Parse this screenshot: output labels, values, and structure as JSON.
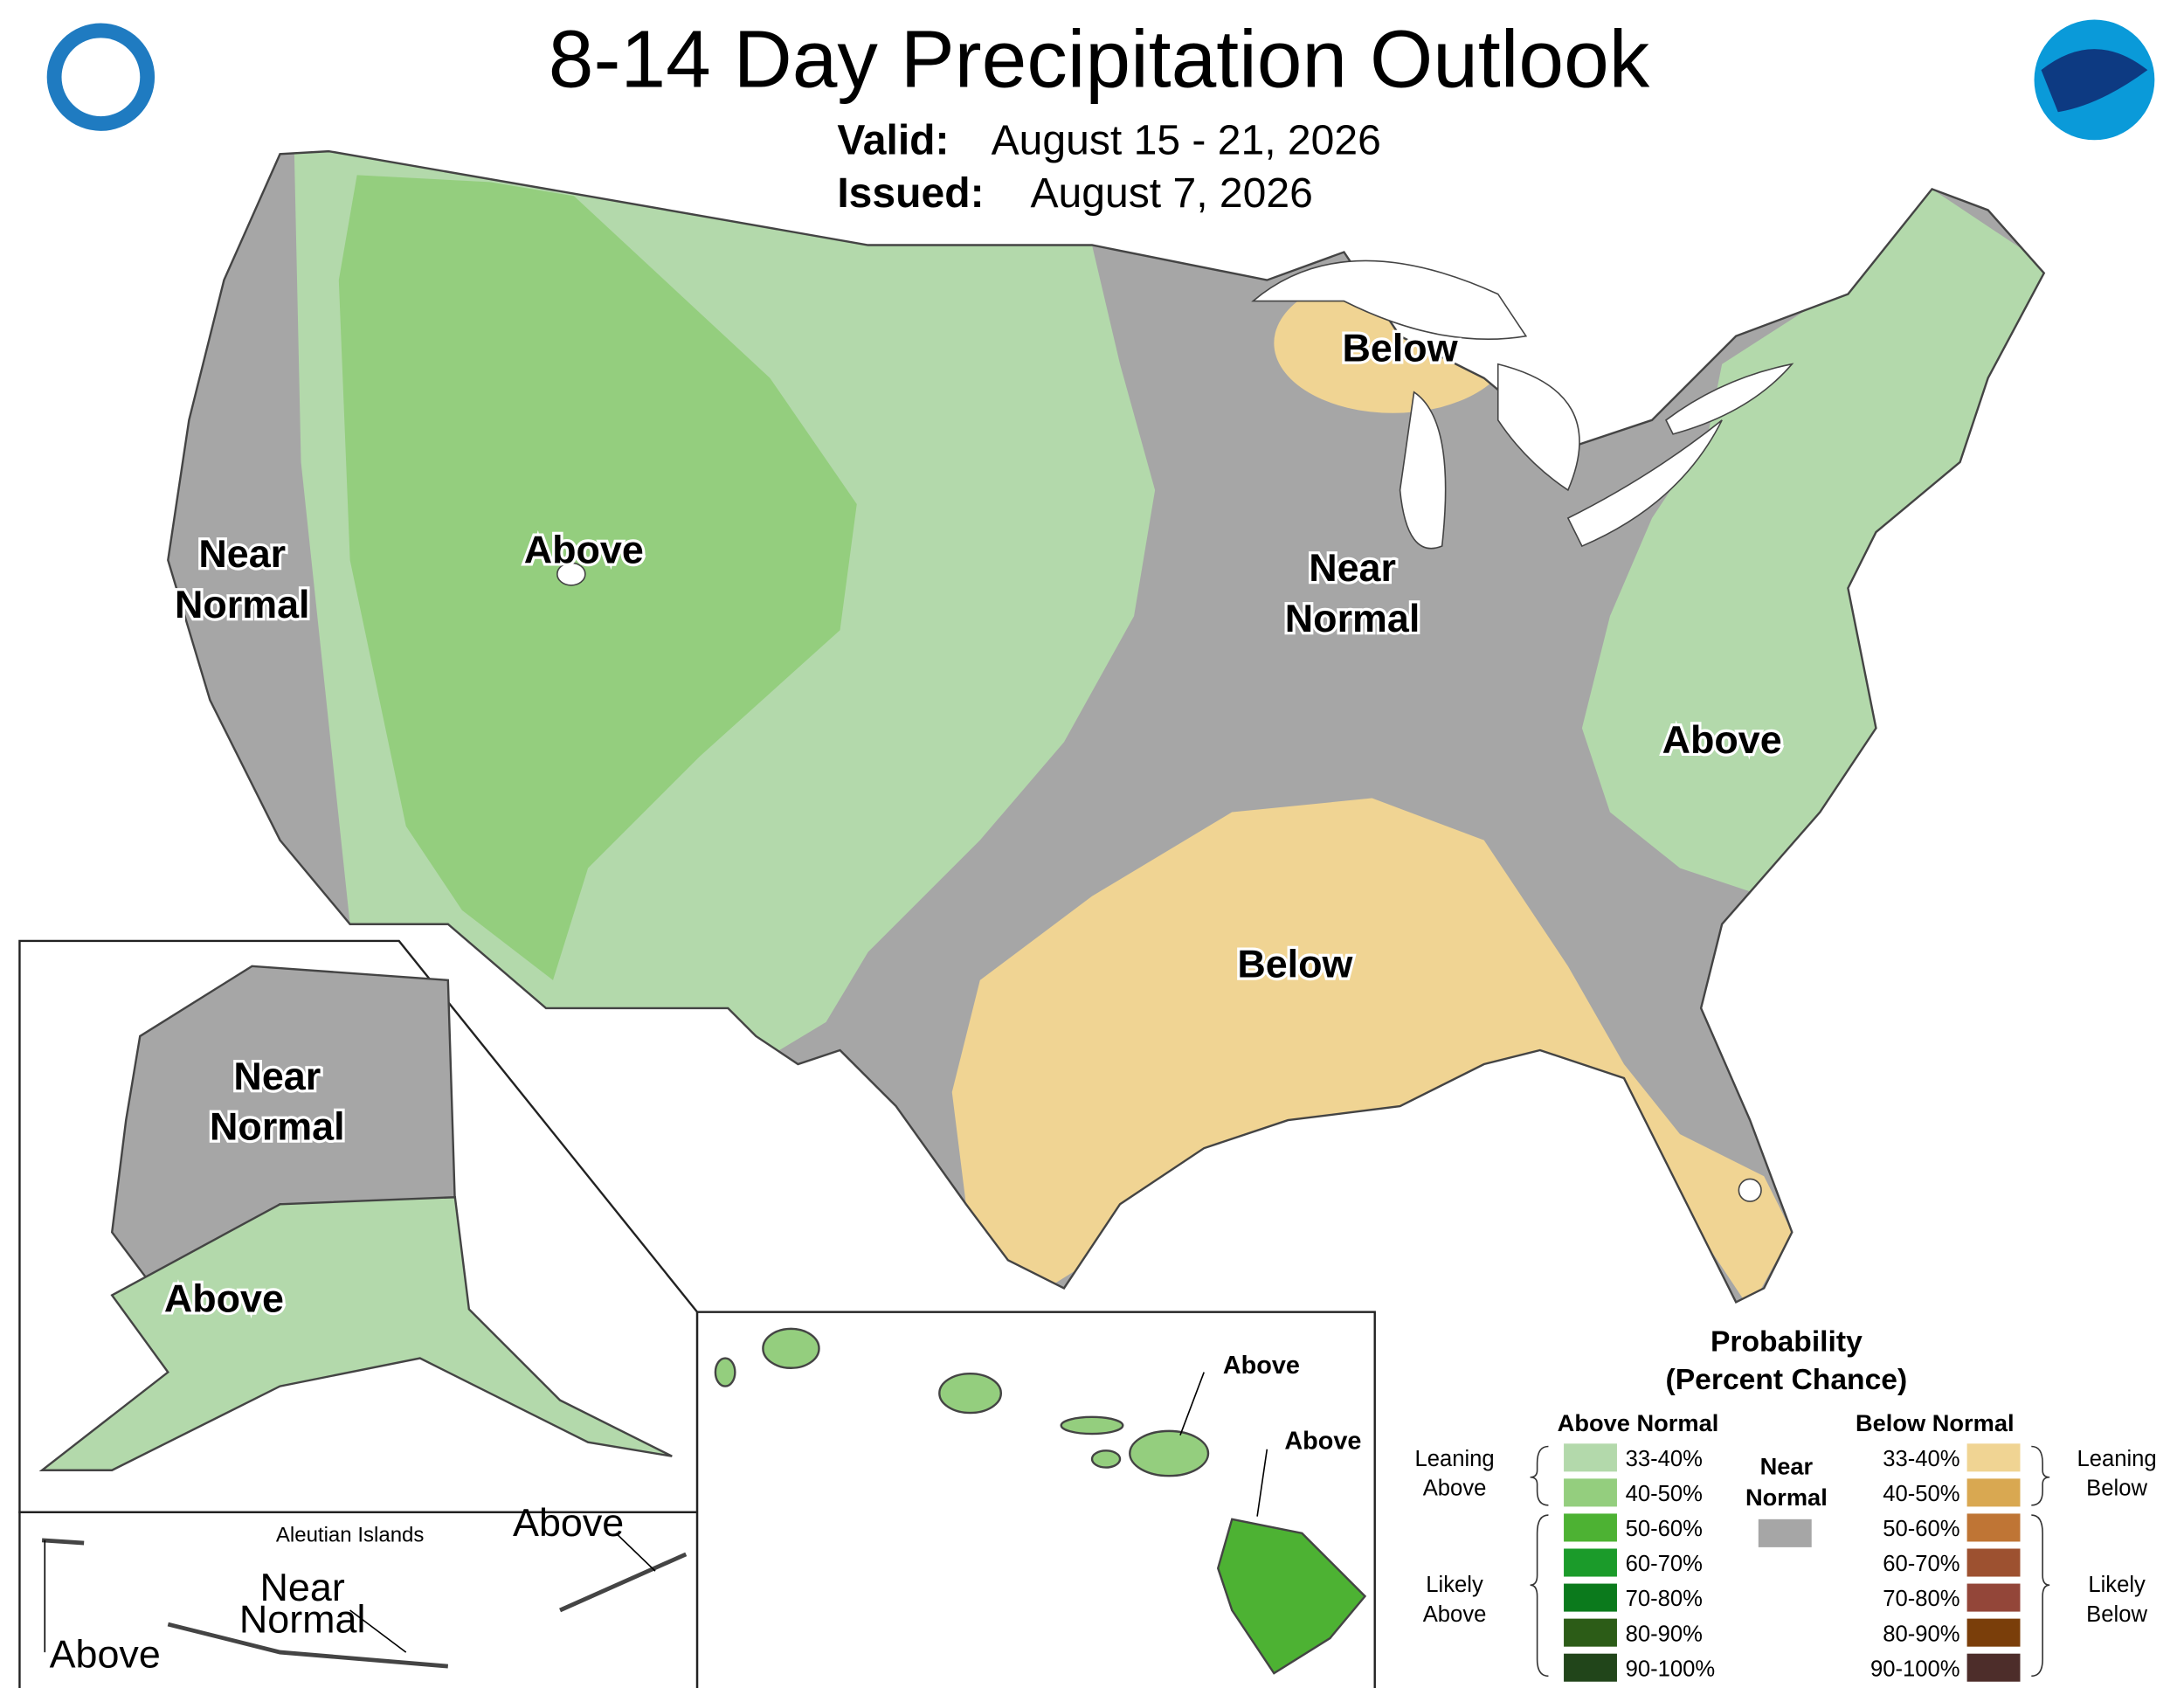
{
  "header": {
    "title": "8-14 Day Precipitation Outlook",
    "valid_label": "Valid:",
    "valid_date": "August 15 - 21, 2026",
    "issued_label": "Issued:",
    "issued_date": "August 7, 2026"
  },
  "conus_labels": [
    {
      "lines": [
        "Near",
        "Normal"
      ]
    },
    {
      "lines": [
        "Above"
      ]
    },
    {
      "lines": [
        "Below"
      ]
    },
    {
      "lines": [
        "Near",
        "Normal"
      ]
    },
    {
      "lines": [
        "Above"
      ]
    },
    {
      "lines": [
        "Below"
      ]
    }
  ],
  "alaska_labels": [
    {
      "lines": [
        "Near",
        "Normal"
      ]
    },
    {
      "lines": [
        "Above"
      ]
    }
  ],
  "aleutian": {
    "title": "Aleutian Islands",
    "labels": [
      {
        "lines": [
          "Above"
        ]
      },
      {
        "lines": [
          "Near",
          "Normal"
        ]
      },
      {
        "lines": [
          "Above"
        ]
      }
    ]
  },
  "hawaii_labels": [
    {
      "lines": [
        "Above"
      ]
    },
    {
      "lines": [
        "Above"
      ]
    }
  ],
  "legend": {
    "title": [
      "Probability",
      "(Percent Chance)"
    ],
    "above": {
      "title": "Above Normal",
      "entries": [
        {
          "label": "33-40%",
          "color": "#b3d9ab"
        },
        {
          "label": "40-50%",
          "color": "#94ce7e"
        },
        {
          "label": "50-60%",
          "color": "#4db233"
        },
        {
          "label": "60-70%",
          "color": "#1b9b2a"
        },
        {
          "label": "70-80%",
          "color": "#0b7a1c"
        },
        {
          "label": "80-90%",
          "color": "#2c5c17"
        },
        {
          "label": "90-100%",
          "color": "#21451a"
        }
      ]
    },
    "below": {
      "title": "Below Normal",
      "entries": [
        {
          "label": "33-40%",
          "color": "#f0d493"
        },
        {
          "label": "40-50%",
          "color": "#d9a851"
        },
        {
          "label": "50-60%",
          "color": "#bf7535"
        },
        {
          "label": "60-70%",
          "color": "#9d5130"
        },
        {
          "label": "70-80%",
          "color": "#934639"
        },
        {
          "label": "80-90%",
          "color": "#7a3e0a"
        },
        {
          "label": "90-100%",
          "color": "#4d2d2a"
        }
      ]
    },
    "near": {
      "lines": [
        "Near",
        "Normal"
      ],
      "color": "#a6a6a6"
    },
    "leaning_above": [
      "Leaning",
      "Above"
    ],
    "likely_above": [
      "Likely",
      "Above"
    ],
    "leaning_below": [
      "Leaning",
      "Below"
    ],
    "likely_below": [
      "Likely",
      "Below"
    ]
  }
}
